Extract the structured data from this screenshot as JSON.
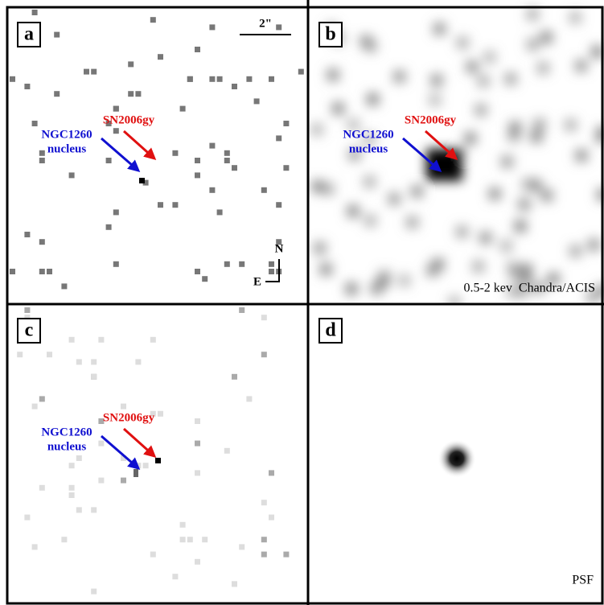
{
  "panels": [
    {
      "label": "a",
      "scale_bar": "2\"",
      "compass": {
        "north": "N",
        "east": "E"
      },
      "source_label": "SN2006gy",
      "nucleus_label": [
        "NGC1260",
        "nucleus"
      ]
    },
    {
      "label": "b",
      "source_label": "SN2006gy",
      "nucleus_label": [
        "NGC1260",
        "nucleus"
      ],
      "caption": "0.5-2 kev  Chandra/ACIS"
    },
    {
      "label": "c",
      "source_label": "SN2006gy",
      "nucleus_label": [
        "NGC1260",
        "nucleus"
      ]
    },
    {
      "label": "d",
      "caption": "PSF"
    }
  ]
}
